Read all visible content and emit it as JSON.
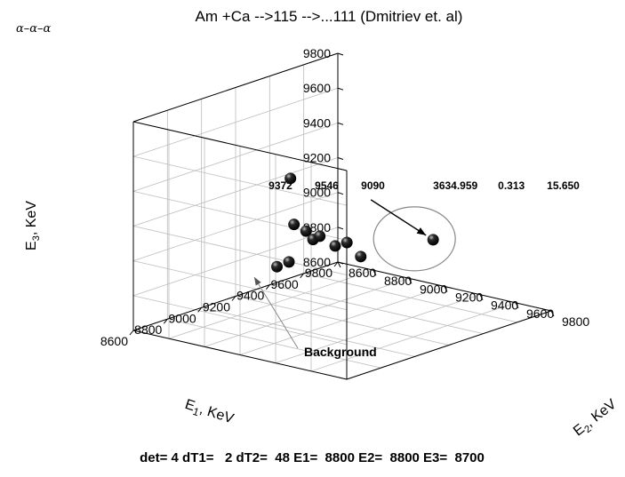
{
  "chart_data": {
    "type": "scatter",
    "title": "Am +Ca -->115 -->...111 (Dmitriev et. al)",
    "corner_label": "α–α–α",
    "x_axis": {
      "label": "E",
      "label_sub": "1",
      "label_unit": ", KeV",
      "range": [
        8600,
        9800
      ],
      "ticks": [
        "8600",
        "8800",
        "9000",
        "9200",
        "9400",
        "9600",
        "9800"
      ]
    },
    "y_axis": {
      "label": "E",
      "label_sub": "2",
      "label_unit": ", KeV",
      "range": [
        8600,
        9800
      ],
      "ticks": [
        "8600",
        "8800",
        "9000",
        "9200",
        "9400",
        "9600",
        "9800"
      ]
    },
    "z_axis": {
      "label": "E",
      "label_sub": "3",
      "label_unit": ", KeV",
      "range": [
        8600,
        9800
      ],
      "ticks": [
        "8600",
        "8800",
        "9000",
        "9200",
        "9400",
        "9600",
        "9800"
      ]
    },
    "points": [
      {
        "x": 9000,
        "y": 9120,
        "z": 9200
      },
      {
        "x": 9050,
        "y": 9140,
        "z": 9150
      },
      {
        "x": 9070,
        "y": 9160,
        "z": 9100
      },
      {
        "x": 9120,
        "y": 9150,
        "z": 9100
      },
      {
        "x": 8900,
        "y": 9120,
        "z": 8990
      },
      {
        "x": 8960,
        "y": 9130,
        "z": 9000
      },
      {
        "x": 9200,
        "y": 9160,
        "z": 9020
      },
      {
        "x": 9300,
        "y": 9130,
        "z": 9000
      },
      {
        "x": 9350,
        "y": 9160,
        "z": 8910
      },
      {
        "x": 9000,
        "y": 9100,
        "z": 9460
      },
      {
        "x": 9372,
        "y": 9546,
        "z": 9090
      }
    ],
    "highlight_index": 10,
    "annotations": {
      "highlight_label": [
        "9372",
        "9546",
        "9090",
        "3634.959",
        "0.313",
        "15.650"
      ],
      "background_label": "Background"
    },
    "footer": "det= 4 dT1=   2 dT2=  48 E1=  8800 E2=  8800 E3=  8700"
  }
}
